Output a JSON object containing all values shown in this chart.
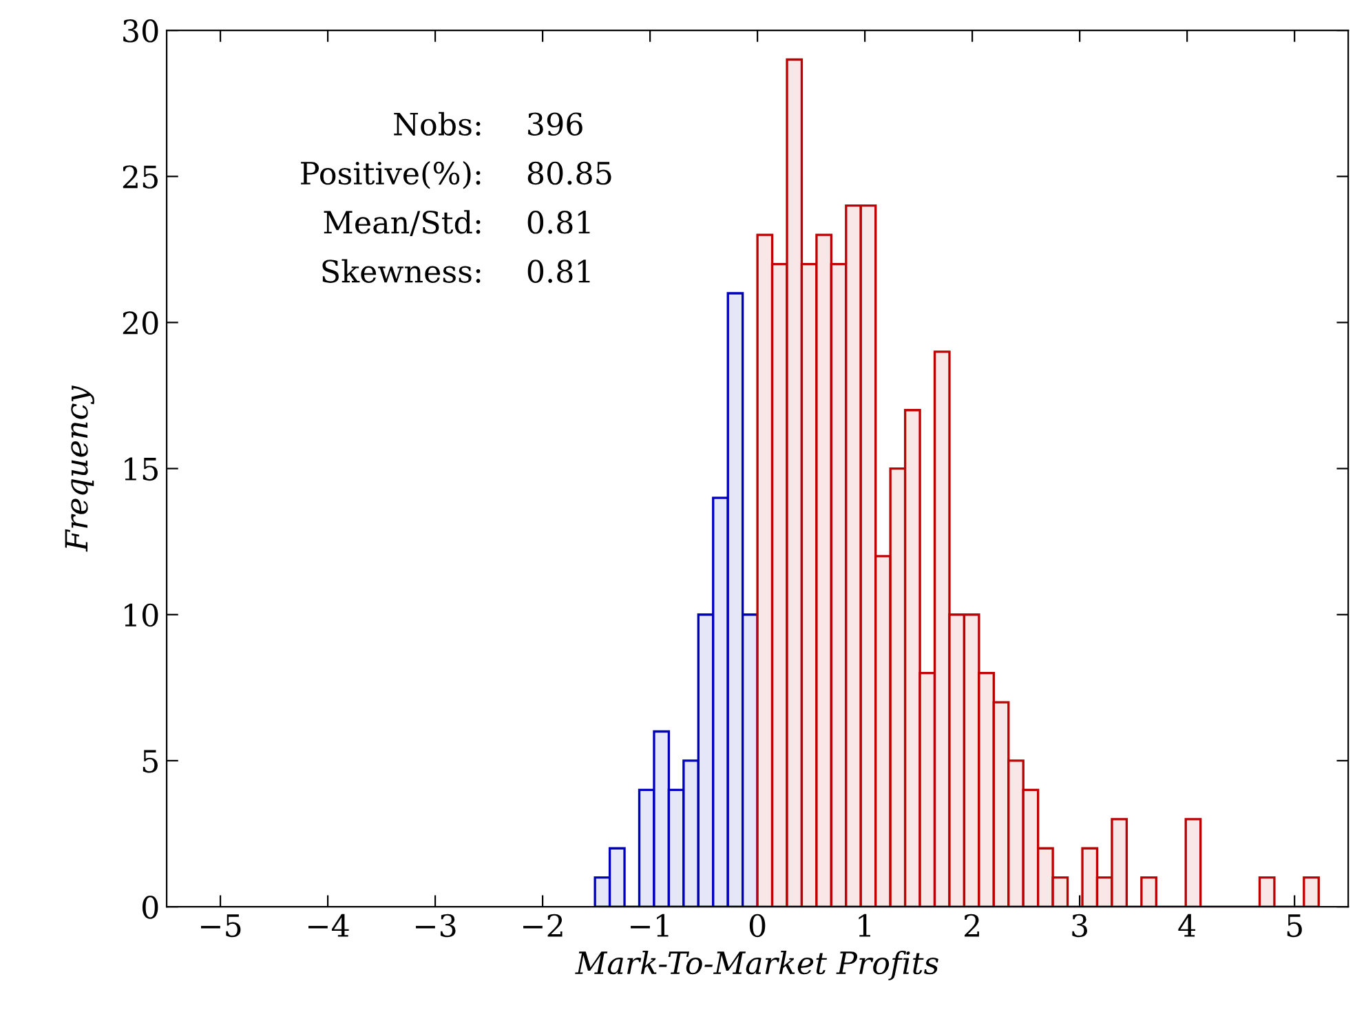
{
  "chart_data": {
    "type": "histogram",
    "xlabel": "Mark-To-Market Profits",
    "ylabel": "Frequency",
    "annotations": [
      "Nobs:",
      "396",
      "Positive(%):",
      "80.85",
      "Mean/Std:",
      "0.81",
      "Skewness:",
      "0.81"
    ],
    "bins": [
      -1.5125,
      -1.375,
      -1.2375,
      -1.1,
      -0.9625,
      -0.825,
      -0.6875,
      -0.55,
      -0.4125,
      -0.275,
      -0.1375,
      0.0,
      0.1375,
      0.275,
      0.4125,
      0.55,
      0.6875,
      0.825,
      0.9625,
      1.1,
      1.2375,
      1.375,
      1.5125,
      1.65,
      1.7875,
      1.925,
      2.0625,
      2.2,
      2.3375,
      2.475,
      2.6125,
      2.75,
      2.8875,
      3.025,
      3.1625,
      3.3,
      3.4375,
      3.575,
      3.7125,
      3.85,
      3.9875,
      4.125,
      4.2625,
      4.4,
      4.5375,
      4.675,
      4.8125,
      4.95,
      5.0875,
      5.225
    ],
    "values": [
      1,
      2,
      0,
      4,
      6,
      4,
      5,
      10,
      14,
      21,
      10,
      23,
      22,
      29,
      22,
      23,
      22,
      24,
      24,
      12,
      15,
      17,
      8,
      19,
      10,
      10,
      8,
      7,
      5,
      4,
      2,
      1,
      0,
      2,
      1,
      3,
      0,
      1,
      0,
      0,
      3,
      0,
      0,
      0,
      0,
      1,
      0,
      0,
      1
    ],
    "colors": [
      "#0000bf",
      "#0000bf",
      "#0000bf",
      "#0000bf",
      "#0000bf",
      "#0000bf",
      "#0000bf",
      "#0000bf",
      "#0000bf",
      "#0000bf",
      "#0000bf",
      "#bf0000",
      "#bf0000",
      "#bf0000",
      "#bf0000",
      "#bf0000",
      "#bf0000",
      "#bf0000",
      "#bf0000",
      "#bf0000",
      "#bf0000",
      "#bf0000",
      "#bf0000",
      "#bf0000",
      "#bf0000",
      "#bf0000",
      "#bf0000",
      "#bf0000",
      "#bf0000",
      "#bf0000",
      "#bf0000",
      "#bf0000",
      "#bf0000",
      "#bf0000",
      "#bf0000",
      "#bf0000",
      "#bf0000",
      "#bf0000",
      "#bf0000",
      "#bf0000",
      "#bf0000",
      "#bf0000",
      "#bf0000",
      "#bf0000",
      "#bf0000",
      "#bf0000",
      "#bf0000",
      "#bf0000",
      "#bf0000"
    ],
    "xlim": [
      -5.5,
      5.5
    ],
    "ylim": [
      0,
      30
    ],
    "xticks": [
      {
        "value": -5,
        "label": "−5"
      },
      {
        "value": -4,
        "label": "−4"
      },
      {
        "value": -3,
        "label": "−3"
      },
      {
        "value": -2,
        "label": "−2"
      },
      {
        "value": -1,
        "label": "−1"
      },
      0,
      1,
      2,
      3,
      4,
      5
    ],
    "yticks": [
      0,
      5,
      10,
      15,
      20,
      25,
      30
    ],
    "grid": false
  }
}
